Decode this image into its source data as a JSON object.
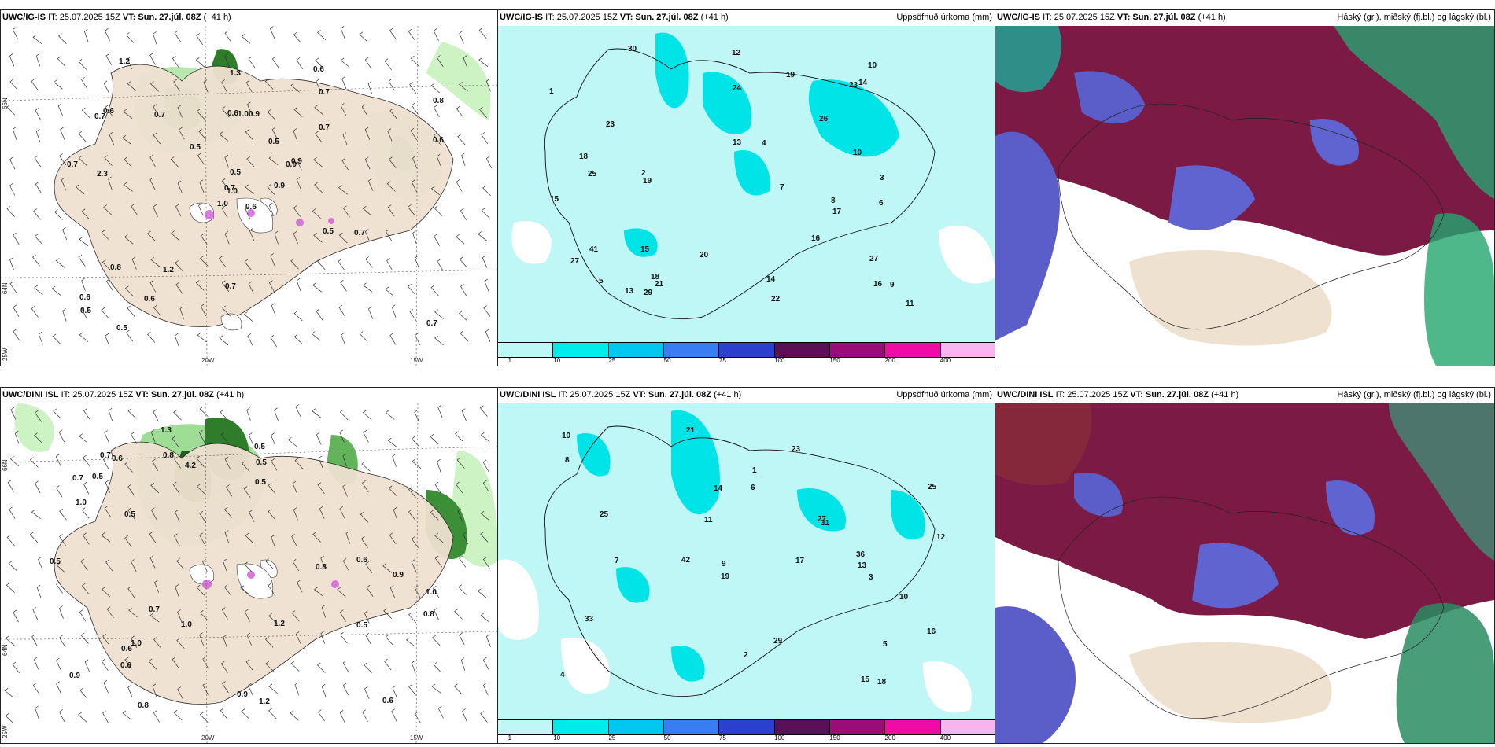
{
  "panels": [
    {
      "model": "UWC/IG-IS",
      "it": "IT: 25.07.2025 15Z",
      "vt_label": "VT:",
      "vt": "Sun. 27.júl. 08Z",
      "lead": "(+41 h)",
      "right_title": "",
      "kind": "precip_wind"
    },
    {
      "model": "UWC/IG-IS",
      "it": "IT: 25.07.2025 15Z",
      "vt_label": "VT:",
      "vt": "Sun. 27.júl. 08Z",
      "lead": "(+41 h)",
      "right_title": "Uppsöfnuð úrkoma (mm)",
      "kind": "accum"
    },
    {
      "model": "UWC/IG-IS",
      "it": "IT: 25.07.2025 15Z",
      "vt_label": "VT:",
      "vt": "Sun. 27.júl. 08Z",
      "lead": "(+41 h)",
      "right_title": "Háský (gr.), miðský (fj.bl.) og lágský (bl.)",
      "kind": "cloud"
    },
    {
      "model": "UWC/DINI ISL",
      "it": "IT: 25.07.2025 15Z",
      "vt_label": "VT:",
      "vt": "Sun. 27.júl. 08Z",
      "lead": "(+41 h)",
      "right_title": "",
      "kind": "precip_wind"
    },
    {
      "model": "UWC/DINI ISL",
      "it": "IT: 25.07.2025 15Z",
      "vt_label": "VT:",
      "vt": "Sun. 27.júl. 08Z",
      "lead": "(+41 h)",
      "right_title": "Uppsöfnuð úrkoma (mm)",
      "kind": "accum"
    },
    {
      "model": "UWC/DINI ISL",
      "it": "IT: 25.07.2025 15Z",
      "vt_label": "VT:",
      "vt": "Sun. 27.júl. 08Z",
      "lead": "(+41 h)",
      "right_title": "Háský (gr.), miðský (fj.bl.) og lágský (bl.)",
      "kind": "cloud"
    }
  ],
  "axis_labels": {
    "lat_66": "66N",
    "lat_64": "64N",
    "lat_25w": "25W",
    "lon_20w": "20W",
    "lon_15w": "15W"
  },
  "colorbar": {
    "ticks": [
      "1",
      "10",
      "25",
      "50",
      "75",
      "100",
      "150",
      "200",
      "400"
    ],
    "colors": [
      "#bff6f6",
      "#00ecec",
      "#00c6f0",
      "#3a7cf2",
      "#2c3fcf",
      "#5a0f57",
      "#9c0c78",
      "#f00aa6",
      "#f7b4ee"
    ]
  },
  "precip_labels_top": [
    "0.6",
    "0.7",
    "1.0",
    "0.6",
    "0.9",
    "1.2",
    "0.6",
    "0.9",
    "0.7",
    "0.9",
    "1.2",
    "0.7",
    "2.3",
    "0.8",
    "1.0",
    "0.7",
    "0.5",
    "0.6",
    "0.5",
    "0.8",
    "0.5",
    "0.5",
    "0.6",
    "1.0",
    "0.9",
    "0.7",
    "0.6",
    "1.3",
    "0.7",
    "0.5",
    "0.6",
    "0.7",
    "0.7",
    "0.5",
    "0.7"
  ],
  "precip_labels_bottom": [
    "1.0",
    "0.6",
    "1.3",
    "4.2",
    "1.2",
    "0.8",
    "0.6",
    "0.5",
    "0.7",
    "0.9",
    "0.5",
    "1.0",
    "0.5",
    "0.6",
    "0.7",
    "0.8",
    "0.9",
    "1.0",
    "1.2",
    "0.6",
    "0.5",
    "0.5",
    "0.9",
    "0.7",
    "1.0",
    "0.8",
    "0.5",
    "0.6",
    "0.8",
    "0.5"
  ],
  "accum_labels_top": [
    "7",
    "14",
    "13",
    "18",
    "15",
    "16",
    "10",
    "24",
    "19",
    "27",
    "29",
    "23",
    "30",
    "26",
    "27",
    "22",
    "25",
    "11",
    "12",
    "9",
    "23",
    "19",
    "18",
    "17",
    "15",
    "16",
    "41",
    "14",
    "20",
    "21",
    "13",
    "10",
    "4",
    "3",
    "5",
    "2",
    "1",
    "6",
    "8"
  ],
  "accum_labels_bottom": [
    "15",
    "10",
    "13",
    "42",
    "25",
    "17",
    "36",
    "27",
    "29",
    "14",
    "11",
    "16",
    "23",
    "19",
    "33",
    "31",
    "25",
    "21",
    "12",
    "18",
    "4",
    "3",
    "5",
    "2",
    "1",
    "6",
    "8",
    "9",
    "7",
    "10"
  ]
}
